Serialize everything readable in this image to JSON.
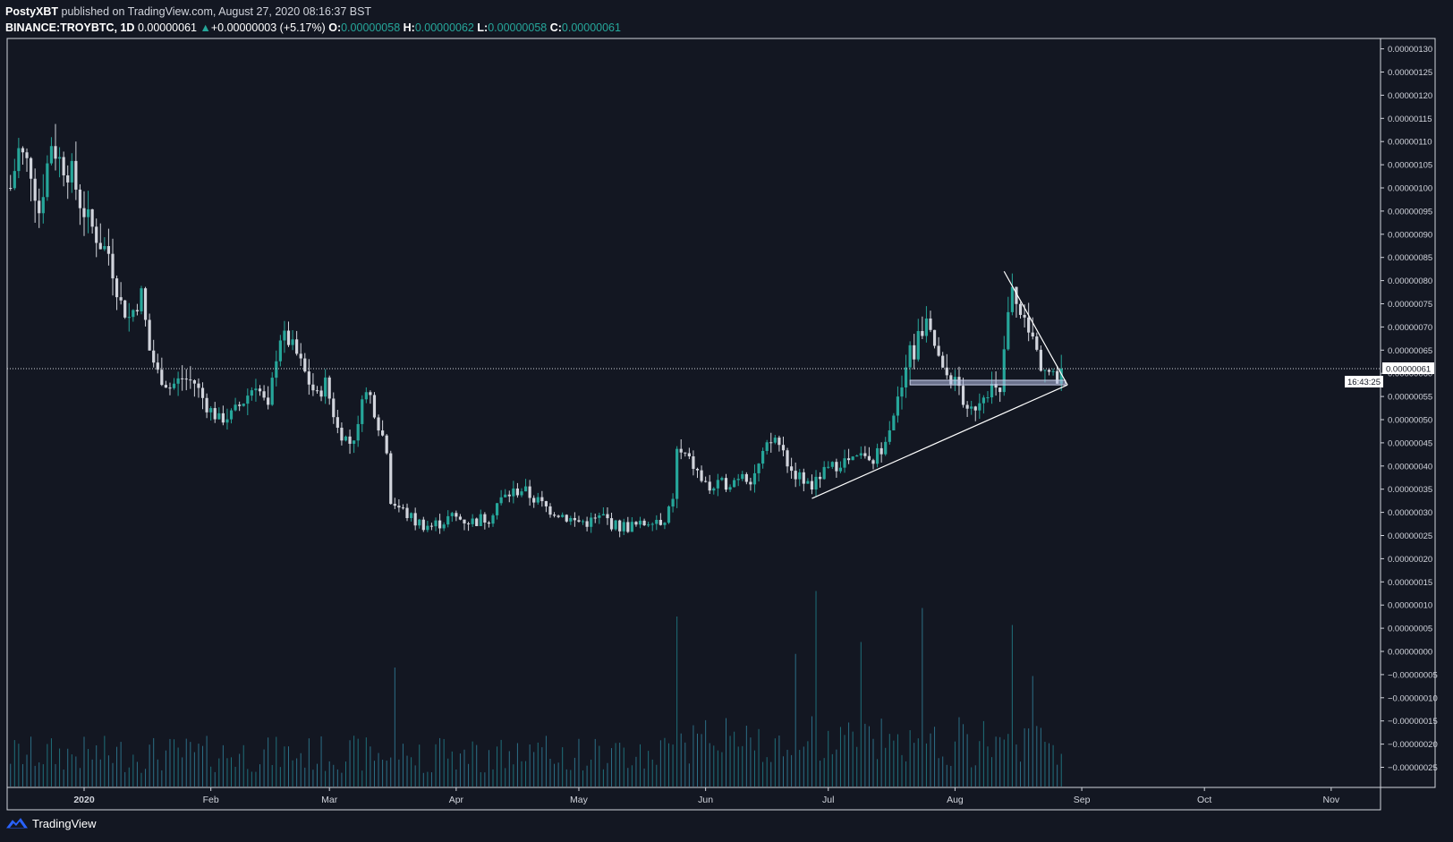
{
  "header": {
    "author": "PostyXBT",
    "published": "published on TradingView.com, August 27, 2020 08:16:37 BST",
    "symbol": "BINANCE:TROYBTC, 1D",
    "last": "0.00000061",
    "change_arrow": "▲",
    "change": "+0.00000003 (+5.17%)",
    "o_label": "O:",
    "o_value": "0.00000058",
    "h_label": "H:",
    "h_value": "0.00000062",
    "l_label": "L:",
    "l_value": "0.00000058",
    "c_label": "C:",
    "c_value": "0.00000061"
  },
  "footer": {
    "brand": "TradingView",
    "logo_icon": "tradingview-cloud-icon"
  },
  "price_scale": {
    "ticks": [
      "0.00000130",
      "0.00000125",
      "0.00000120",
      "0.00000115",
      "0.00000110",
      "0.00000105",
      "0.00000100",
      "0.00000095",
      "0.00000090",
      "0.00000085",
      "0.00000080",
      "0.00000075",
      "0.00000070",
      "0.00000065",
      "0.00000060",
      "0.00000055",
      "0.00000050",
      "0.00000045",
      "0.00000040",
      "0.00000035",
      "0.00000030",
      "0.00000025",
      "0.00000020",
      "0.00000015",
      "0.00000010",
      "0.00000005",
      "0.00000000",
      "−0.00000005",
      "−0.00000010",
      "−0.00000015",
      "−0.00000020",
      "−0.00000025"
    ],
    "tick_values": [
      130,
      125,
      120,
      115,
      110,
      105,
      100,
      95,
      90,
      85,
      80,
      75,
      70,
      65,
      60,
      55,
      50,
      45,
      40,
      35,
      30,
      25,
      20,
      15,
      10,
      5,
      0,
      -5,
      -10,
      -15,
      -20,
      -25
    ],
    "last_price_label": "0.00000061",
    "last_price_value": 61,
    "countdown": "16:43:25"
  },
  "colors": {
    "background": "#131722",
    "up": "#26a69a",
    "down": "#d1d4dc",
    "accent": "#2962ff",
    "text": "#d1d4dc"
  },
  "chart_data": {
    "type": "candlestick",
    "title": "BINANCE:TROYBTC, 1D",
    "value_unit": "1e-8 BTC (satoshi)",
    "x_axis_labels": [
      "2020",
      "Feb",
      "Mar",
      "Apr",
      "May",
      "Jun",
      "Jul",
      "Aug",
      "Sep",
      "Oct",
      "Nov"
    ],
    "x_axis_label_days": [
      0,
      31,
      60,
      91,
      121,
      152,
      182,
      213,
      244,
      274,
      305
    ],
    "first_candle_day": -18,
    "last_candle_day": 239,
    "ylim": [
      -28,
      134
    ],
    "close_path": [
      [
        -18,
        100
      ],
      [
        -16,
        108
      ],
      [
        -13,
        104
      ],
      [
        -11,
        95
      ],
      [
        -8,
        110
      ],
      [
        -6,
        106
      ],
      [
        -3,
        103
      ],
      [
        -1,
        97
      ],
      [
        1,
        93
      ],
      [
        4,
        88
      ],
      [
        6,
        86
      ],
      [
        9,
        75
      ],
      [
        11,
        72
      ],
      [
        14,
        77
      ],
      [
        16,
        65
      ],
      [
        18,
        60
      ],
      [
        21,
        57
      ],
      [
        24,
        59
      ],
      [
        27,
        58
      ],
      [
        30,
        53
      ],
      [
        33,
        50
      ],
      [
        36,
        51
      ],
      [
        39,
        54
      ],
      [
        42,
        58
      ],
      [
        45,
        52
      ],
      [
        47,
        64
      ],
      [
        48,
        68
      ],
      [
        50,
        67
      ],
      [
        52,
        64
      ],
      [
        55,
        58
      ],
      [
        57,
        55
      ],
      [
        59,
        58
      ],
      [
        62,
        48
      ],
      [
        65,
        45
      ],
      [
        67,
        48
      ],
      [
        68,
        56
      ],
      [
        70,
        55
      ],
      [
        72,
        49
      ],
      [
        74,
        44
      ],
      [
        75,
        33
      ],
      [
        77,
        31
      ],
      [
        81,
        28
      ],
      [
        85,
        27
      ],
      [
        90,
        29
      ],
      [
        95,
        28
      ],
      [
        99,
        29
      ],
      [
        101,
        32
      ],
      [
        104,
        34
      ],
      [
        107,
        35
      ],
      [
        110,
        33
      ],
      [
        113,
        31
      ],
      [
        116,
        30
      ],
      [
        120,
        28
      ],
      [
        124,
        28
      ],
      [
        127,
        29
      ],
      [
        130,
        27
      ],
      [
        133,
        27
      ],
      [
        136,
        27
      ],
      [
        139,
        29
      ],
      [
        142,
        28
      ],
      [
        144,
        32
      ],
      [
        145,
        43
      ],
      [
        147,
        42
      ],
      [
        149,
        40
      ],
      [
        151,
        37
      ],
      [
        153,
        35
      ],
      [
        156,
        36
      ],
      [
        159,
        37
      ],
      [
        161,
        39
      ],
      [
        163,
        37
      ],
      [
        165,
        40
      ],
      [
        167,
        44
      ],
      [
        169,
        46
      ],
      [
        171,
        43
      ],
      [
        173,
        39
      ],
      [
        176,
        37
      ],
      [
        178,
        35
      ],
      [
        180,
        38
      ],
      [
        182,
        39
      ],
      [
        185,
        41
      ],
      [
        188,
        41
      ],
      [
        190,
        42
      ],
      [
        192,
        40
      ],
      [
        195,
        44
      ],
      [
        197,
        49
      ],
      [
        199,
        54
      ],
      [
        201,
        60
      ],
      [
        202,
        66
      ],
      [
        203,
        64
      ],
      [
        204,
        68
      ],
      [
        206,
        70
      ],
      [
        208,
        66
      ],
      [
        210,
        60
      ],
      [
        212,
        59
      ],
      [
        214,
        57
      ],
      [
        216,
        51
      ],
      [
        218,
        53
      ],
      [
        220,
        56
      ],
      [
        222,
        57
      ],
      [
        224,
        55
      ],
      [
        225,
        65
      ],
      [
        226,
        72
      ],
      [
        227,
        78
      ],
      [
        228,
        74
      ],
      [
        230,
        70
      ],
      [
        232,
        67
      ],
      [
        234,
        62
      ],
      [
        236,
        60
      ],
      [
        237,
        59
      ],
      [
        238,
        58
      ],
      [
        239,
        61
      ]
    ],
    "volume_scale_note": "volume shown without axis",
    "volume_spikes": [
      [
        145,
        1.0
      ],
      [
        174,
        0.78
      ],
      [
        179,
        1.15
      ],
      [
        190,
        0.85
      ],
      [
        205,
        1.05
      ],
      [
        227,
        0.95
      ],
      [
        232,
        0.65
      ],
      [
        76,
        0.7
      ]
    ],
    "drawings": {
      "resistance_line": {
        "from": [
          225,
          82
        ],
        "to": [
          240.5,
          57.5
        ]
      },
      "support_line": {
        "from": [
          178,
          33
        ],
        "to": [
          240.5,
          57.5
        ]
      },
      "horizontal_zone": {
        "day_from": 202,
        "day_to": 240,
        "value_low": 57.5,
        "value_high": 58.5
      }
    }
  }
}
